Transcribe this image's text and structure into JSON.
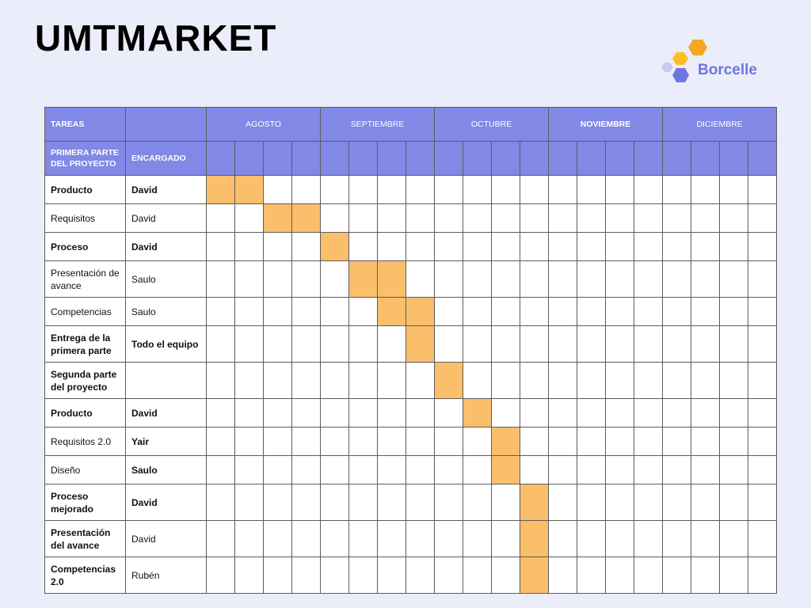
{
  "title": "UMTMARKET",
  "logo": {
    "text": "Borcelle",
    "icon": "hexagon-cluster-icon",
    "colors": [
      "#f5a623",
      "#fbbf24",
      "#6b76e0",
      "#c7caf2"
    ]
  },
  "colors": {
    "header": "#8188e6",
    "fill": "#fbbf6b",
    "background": "#ecedfa"
  },
  "header": {
    "tasks": "TAREAS",
    "subtitle": "PRIMERA PARTE DEL PROYECTO",
    "owner": "ENCARGADO",
    "months": [
      {
        "label": "AGOSTO",
        "bold": false
      },
      {
        "label": "SEPTIEMBRE",
        "bold": false
      },
      {
        "label": "OCTUBRE",
        "bold": false
      },
      {
        "label": "NOVIEMBRE",
        "bold": true
      },
      {
        "label": "DICIEMBRE",
        "bold": false
      }
    ]
  },
  "rows": [
    {
      "task": "Producto",
      "owner": "David",
      "task_bold": true,
      "owner_bold": true,
      "weeks": [
        1,
        2
      ]
    },
    {
      "task": "Requisitos",
      "owner": "David",
      "task_bold": false,
      "owner_bold": false,
      "weeks": [
        3,
        4
      ]
    },
    {
      "task": "Proceso",
      "owner": "David",
      "task_bold": true,
      "owner_bold": true,
      "weeks": [
        5
      ]
    },
    {
      "task": "Presentación de avance",
      "owner": "Saulo",
      "task_bold": false,
      "owner_bold": false,
      "weeks": [
        6,
        7
      ]
    },
    {
      "task": "Competencias",
      "owner": "Saulo",
      "task_bold": false,
      "owner_bold": false,
      "weeks": [
        7,
        8
      ]
    },
    {
      "task": "Entrega de la primera parte",
      "owner": "Todo el equipo",
      "task_bold": true,
      "owner_bold": true,
      "weeks": [
        8
      ]
    },
    {
      "task": "Segunda parte del proyecto",
      "owner": "",
      "task_bold": true,
      "owner_bold": false,
      "weeks": [
        9
      ]
    },
    {
      "task": "Producto",
      "owner": "David",
      "task_bold": true,
      "owner_bold": true,
      "weeks": [
        10
      ]
    },
    {
      "task": "Requisitos 2.0",
      "owner": "Yair",
      "task_bold": false,
      "owner_bold": true,
      "weeks": [
        11
      ]
    },
    {
      "task": "Diseño",
      "owner": "Saulo",
      "task_bold": false,
      "owner_bold": true,
      "weeks": [
        11
      ]
    },
    {
      "task": "Proceso mejorado",
      "owner": "David",
      "task_bold": true,
      "owner_bold": true,
      "weeks": [
        12
      ]
    },
    {
      "task": "Presentación del avance",
      "owner": "David",
      "task_bold": true,
      "owner_bold": false,
      "weeks": [
        12
      ]
    },
    {
      "task": "Competencias 2.0",
      "owner": "Rubén",
      "task_bold": true,
      "owner_bold": false,
      "weeks": [
        12
      ]
    }
  ]
}
